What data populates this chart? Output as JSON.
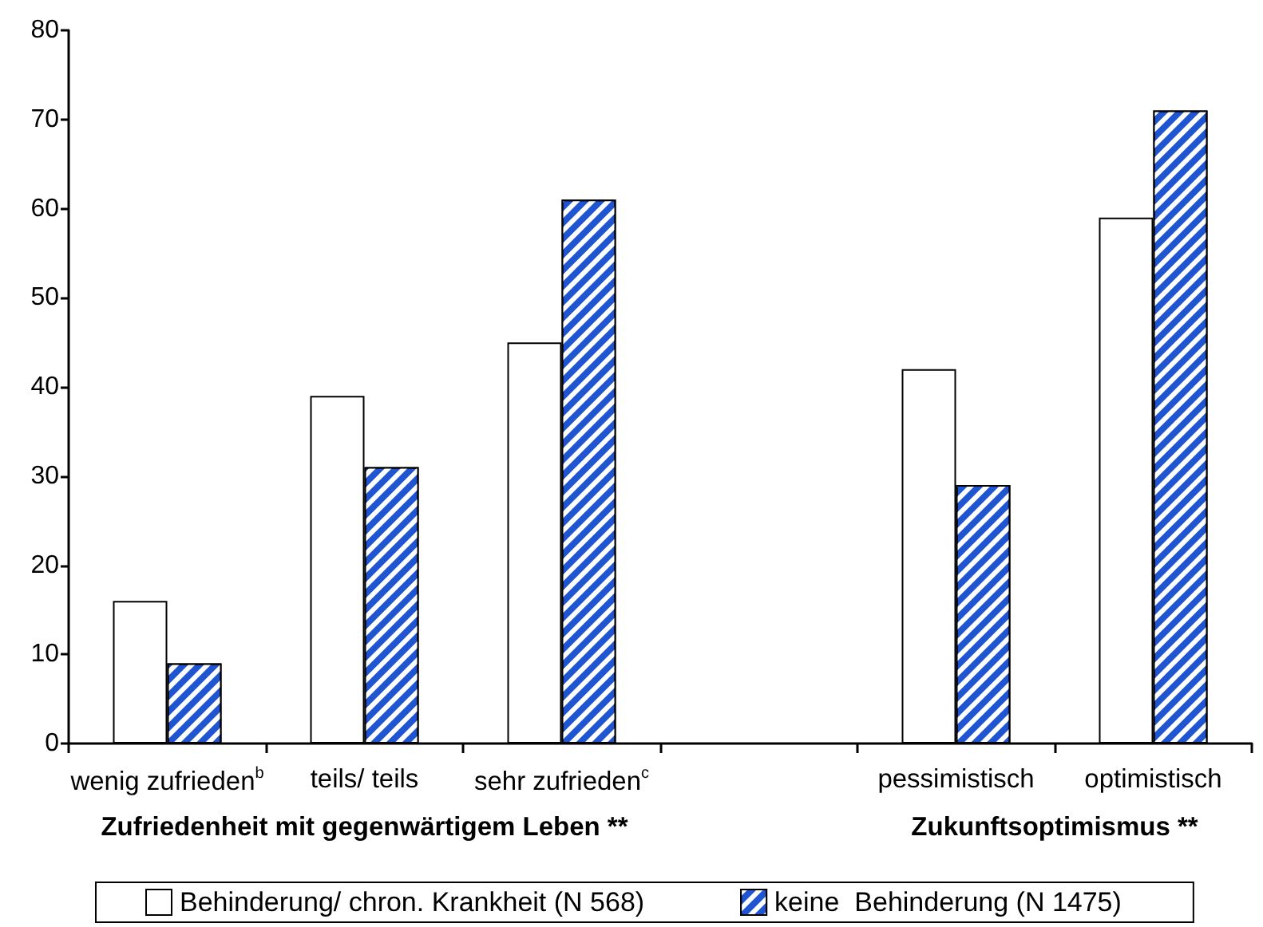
{
  "chart_data": {
    "type": "bar",
    "categories": [
      "wenig zufrieden$^{b}$",
      "teils/ teils",
      "sehr zufrieden$^{c}$",
      null,
      "pessimistisch",
      "optimistisch"
    ],
    "series": [
      {
        "name": "Behinderung/ chron. Krankheit (N 568)",
        "color": "#ffffff",
        "values": [
          16,
          39,
          45,
          null,
          42,
          59
        ]
      },
      {
        "name": "keine  Behinderung (N 1475)",
        "color": "#1f55d0",
        "values": [
          9,
          31,
          61,
          null,
          29,
          71
        ]
      }
    ],
    "ylim": [
      0,
      80
    ],
    "yticks": [
      0,
      10,
      20,
      30,
      40,
      50,
      60,
      70,
      80
    ],
    "legend": "bottom",
    "annotations": [
      "Zufriedenheit mit gegenwärtigem Leben **",
      "Zukunftsoptimismus **"
    ]
  }
}
